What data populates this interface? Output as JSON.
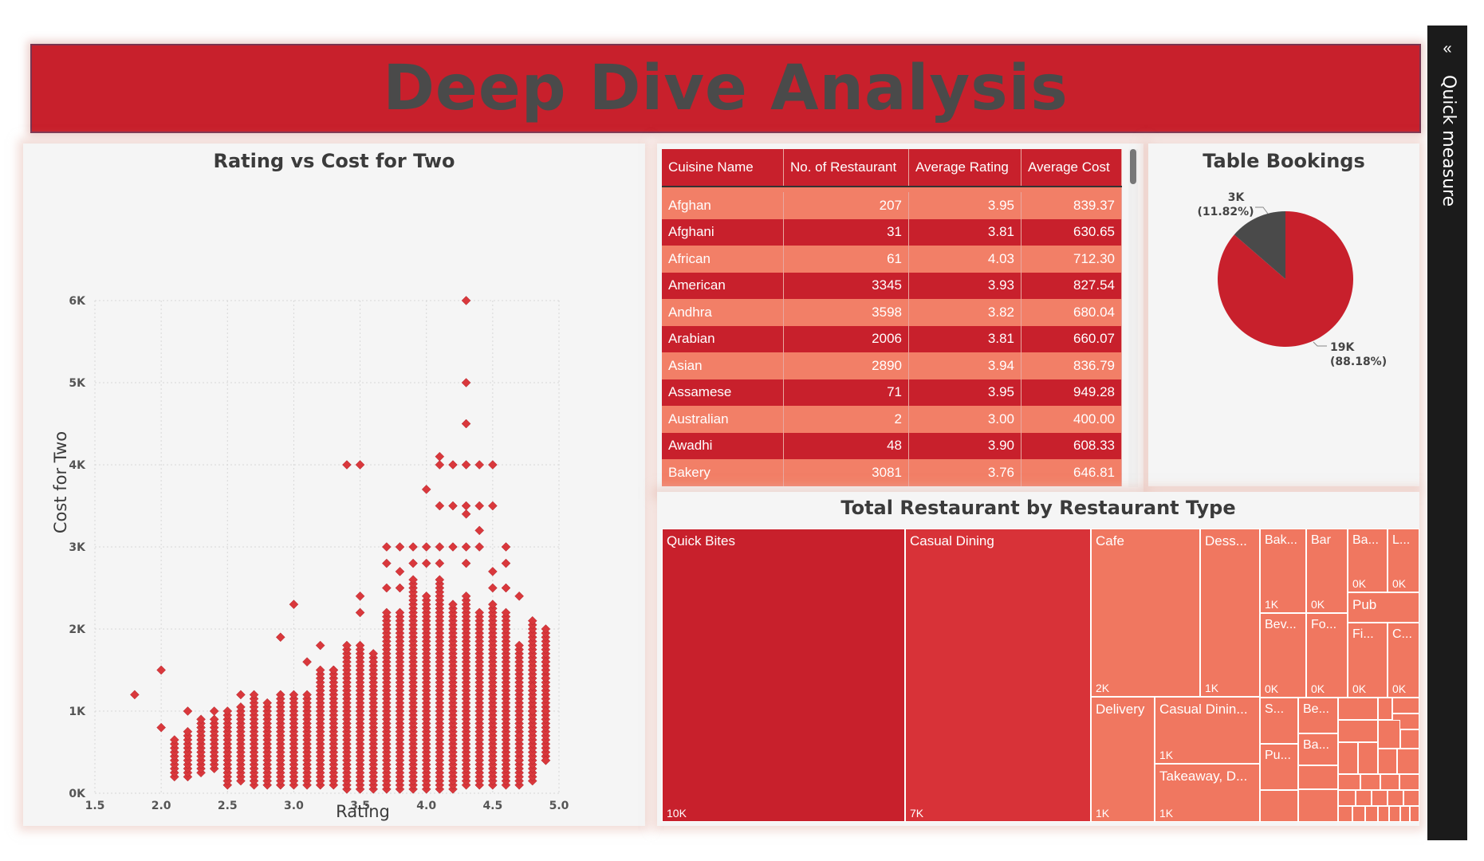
{
  "page_title": "Deep Dive Analysis",
  "sidebar": {
    "label": "Quick measure",
    "icon": "double-chevron-left-icon"
  },
  "colors": {
    "accent": "#c8202c",
    "light_row": "#f27f67",
    "pie_minor": "#4a4a4a",
    "treemap_main": "#c8202c",
    "treemap_second": "#d83238",
    "treemap_light": "#f07760"
  },
  "scatter": {
    "title": "Rating vs Cost for Two",
    "xlabel": "Rating",
    "ylabel": "Cost for Two",
    "x_ticks": [
      "1.5",
      "2.0",
      "2.5",
      "3.0",
      "3.5",
      "4.0",
      "4.5",
      "5.0"
    ],
    "y_ticks": [
      "0K",
      "1K",
      "2K",
      "3K",
      "4K",
      "5K",
      "6K"
    ]
  },
  "chart_data": [
    {
      "type": "scatter",
      "title": "Rating vs Cost for Two",
      "xlabel": "Rating",
      "ylabel": "Cost for Two",
      "xlim": [
        1.5,
        5.0
      ],
      "ylim": [
        0,
        6000
      ],
      "grid": true,
      "note_columns": "dense columns of points at each rating step 0.1 from 2.1 to 4.9; column ranges given as [rating, min_cost, max_cost]",
      "columns": [
        [
          2.1,
          200,
          650
        ],
        [
          2.2,
          200,
          750
        ],
        [
          2.3,
          250,
          900
        ],
        [
          2.4,
          300,
          900
        ],
        [
          2.5,
          100,
          1000
        ],
        [
          2.6,
          150,
          1050
        ],
        [
          2.7,
          100,
          1200
        ],
        [
          2.8,
          100,
          1100
        ],
        [
          2.9,
          100,
          1200
        ],
        [
          3.0,
          100,
          1200
        ],
        [
          3.1,
          100,
          1200
        ],
        [
          3.2,
          100,
          1500
        ],
        [
          3.3,
          100,
          1500
        ],
        [
          3.4,
          50,
          1800
        ],
        [
          3.5,
          50,
          1800
        ],
        [
          3.6,
          50,
          1700
        ],
        [
          3.7,
          50,
          2200
        ],
        [
          3.8,
          50,
          2200
        ],
        [
          3.9,
          50,
          2600
        ],
        [
          4.0,
          50,
          2400
        ],
        [
          4.1,
          50,
          2600
        ],
        [
          4.2,
          50,
          2300
        ],
        [
          4.3,
          100,
          2400
        ],
        [
          4.4,
          100,
          2200
        ],
        [
          4.5,
          100,
          2300
        ],
        [
          4.6,
          100,
          2200
        ],
        [
          4.7,
          100,
          1800
        ],
        [
          4.8,
          150,
          2100
        ],
        [
          4.9,
          400,
          2000
        ]
      ],
      "points": [
        [
          1.8,
          1200
        ],
        [
          2.0,
          1500
        ],
        [
          2.0,
          800
        ],
        [
          2.2,
          1000
        ],
        [
          2.4,
          1000
        ],
        [
          2.6,
          1200
        ],
        [
          2.9,
          1900
        ],
        [
          3.0,
          2300
        ],
        [
          3.1,
          1600
        ],
        [
          3.2,
          1800
        ],
        [
          3.3,
          1500
        ],
        [
          3.5,
          2400
        ],
        [
          3.5,
          2200
        ],
        [
          3.6,
          1600
        ],
        [
          3.4,
          4000
        ],
        [
          3.5,
          4000
        ],
        [
          3.7,
          3000
        ],
        [
          3.7,
          2800
        ],
        [
          3.7,
          2500
        ],
        [
          3.8,
          3000
        ],
        [
          3.8,
          2700
        ],
        [
          3.8,
          2500
        ],
        [
          3.9,
          3000
        ],
        [
          3.9,
          2800
        ],
        [
          4.0,
          3700
        ],
        [
          4.0,
          3000
        ],
        [
          4.0,
          2800
        ],
        [
          4.1,
          4100
        ],
        [
          4.1,
          4000
        ],
        [
          4.1,
          3500
        ],
        [
          4.1,
          3000
        ],
        [
          4.1,
          2800
        ],
        [
          4.2,
          4000
        ],
        [
          4.2,
          3500
        ],
        [
          4.2,
          3000
        ],
        [
          4.3,
          6000
        ],
        [
          4.3,
          5000
        ],
        [
          4.3,
          4500
        ],
        [
          4.3,
          4000
        ],
        [
          4.3,
          3500
        ],
        [
          4.3,
          3400
        ],
        [
          4.3,
          3000
        ],
        [
          4.3,
          2800
        ],
        [
          4.4,
          4000
        ],
        [
          4.4,
          3500
        ],
        [
          4.4,
          3200
        ],
        [
          4.4,
          3000
        ],
        [
          4.5,
          4000
        ],
        [
          4.5,
          3500
        ],
        [
          4.5,
          2700
        ],
        [
          4.5,
          2500
        ],
        [
          4.6,
          3000
        ],
        [
          4.6,
          2800
        ],
        [
          4.6,
          2500
        ],
        [
          4.7,
          2400
        ],
        [
          4.7,
          700
        ],
        [
          4.7,
          400
        ],
        [
          4.8,
          1000
        ],
        [
          4.8,
          1300
        ],
        [
          4.9,
          1000
        ],
        [
          4.9,
          1600
        ],
        [
          4.9,
          1400
        ],
        [
          4.9,
          400
        ]
      ]
    },
    {
      "type": "pie",
      "title": "Table Bookings",
      "slices": [
        {
          "value": 19000,
          "label": "19K",
          "percent": "(88.18%)"
        },
        {
          "value": 3000,
          "label": "3K",
          "percent": "(11.82%)"
        }
      ]
    },
    {
      "type": "table",
      "columns": [
        "Cuisine Name",
        "No. of Restaurant",
        "Average Rating",
        "Average Cost"
      ],
      "rows": [
        [
          "Afghan",
          "207",
          "3.95",
          "839.37"
        ],
        [
          "Afghani",
          "31",
          "3.81",
          "630.65"
        ],
        [
          "African",
          "61",
          "4.03",
          "712.30"
        ],
        [
          "American",
          "3345",
          "3.93",
          "827.54"
        ],
        [
          "Andhra",
          "3598",
          "3.82",
          "680.04"
        ],
        [
          "Arabian",
          "2006",
          "3.81",
          "660.07"
        ],
        [
          "Asian",
          "2890",
          "3.94",
          "836.79"
        ],
        [
          "Assamese",
          "71",
          "3.95",
          "949.28"
        ],
        [
          "Australian",
          "2",
          "3.00",
          "400.00"
        ],
        [
          "Awadhi",
          "48",
          "3.90",
          "608.33"
        ],
        [
          "Bakery",
          "3081",
          "3.76",
          "646.81"
        ]
      ]
    },
    {
      "type": "treemap",
      "title": "Total Restaurant by Restaurant Type",
      "items": [
        {
          "name": "Quick Bites",
          "value": "10K"
        },
        {
          "name": "Casual Dining",
          "value": "7K"
        },
        {
          "name": "Cafe",
          "value": "2K"
        },
        {
          "name": "Dess...",
          "value": "1K"
        },
        {
          "name": "Delivery",
          "value": "1K"
        },
        {
          "name": "Casual Dinin...",
          "value": "1K"
        },
        {
          "name": "Takeaway, D...",
          "value": "1K"
        },
        {
          "name": "Bak...",
          "value": "1K"
        },
        {
          "name": "Bar",
          "value": "0K"
        },
        {
          "name": "Ba...",
          "value": "0K"
        },
        {
          "name": "L...",
          "value": "0K"
        },
        {
          "name": "Pub",
          "value": ""
        },
        {
          "name": "Bev...",
          "value": "0K"
        },
        {
          "name": "Fo...",
          "value": "0K"
        },
        {
          "name": "Fi...",
          "value": "0K"
        },
        {
          "name": "C...",
          "value": "0K"
        },
        {
          "name": "S...",
          "value": ""
        },
        {
          "name": "Be...",
          "value": ""
        },
        {
          "name": "Ba...",
          "value": ""
        },
        {
          "name": "Pu...",
          "value": ""
        }
      ]
    }
  ]
}
